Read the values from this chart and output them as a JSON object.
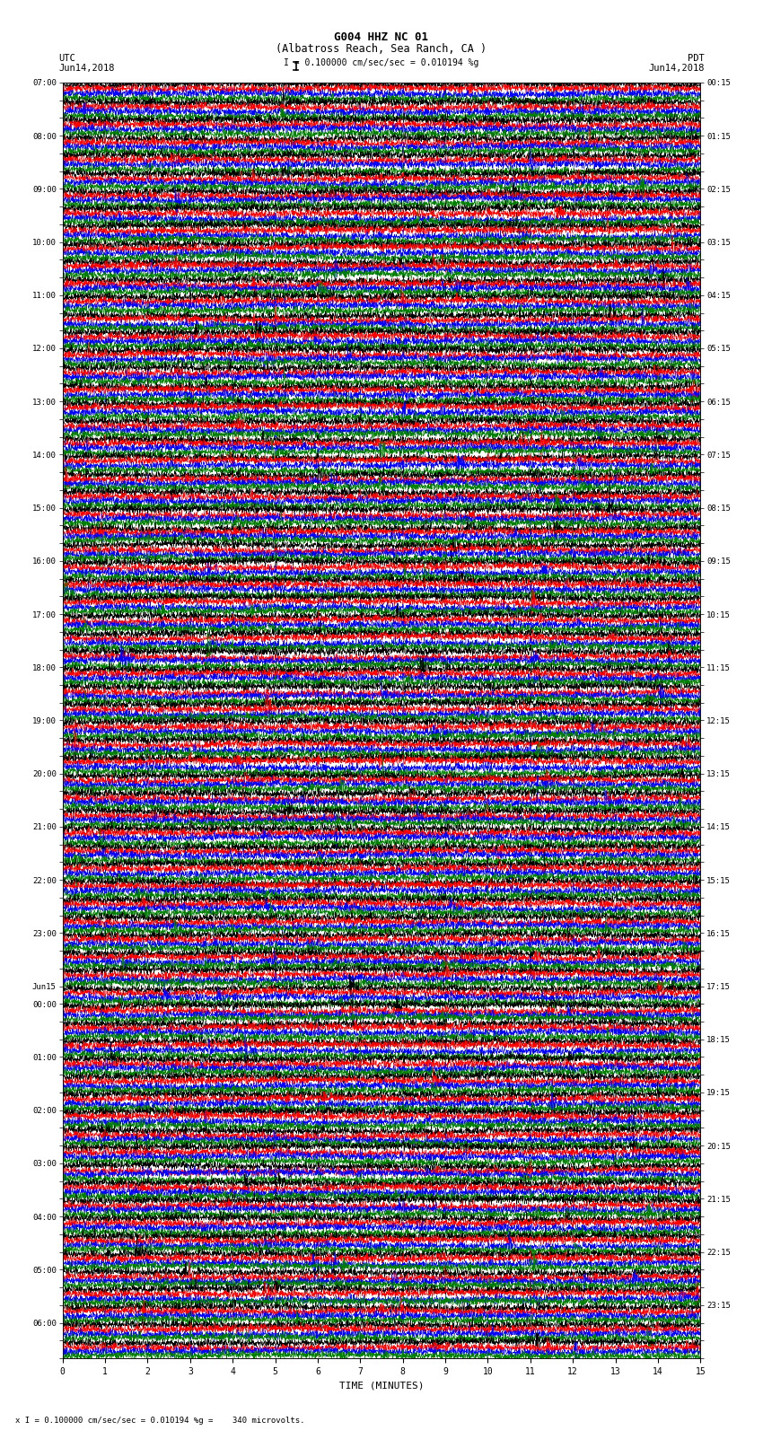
{
  "title_line1": "G004 HHZ NC 01",
  "title_line2": "(Albatross Reach, Sea Ranch, CA )",
  "scale_label": "I = 0.100000 cm/sec/sec = 0.010194 %g",
  "bottom_label": "x I = 0.100000 cm/sec/sec = 0.010194 %g =    340 microvolts.",
  "xlabel": "TIME (MINUTES)",
  "left_label_top": "UTC",
  "left_label_date": "Jun14,2018",
  "right_label_top": "PDT",
  "right_label_date": "Jun14,2018",
  "left_times_utc": [
    "07:00",
    "",
    "",
    "08:00",
    "",
    "",
    "09:00",
    "",
    "",
    "10:00",
    "",
    "",
    "11:00",
    "",
    "",
    "12:00",
    "",
    "",
    "13:00",
    "",
    "",
    "14:00",
    "",
    "",
    "15:00",
    "",
    "",
    "16:00",
    "",
    "",
    "17:00",
    "",
    "",
    "18:00",
    "",
    "",
    "19:00",
    "",
    "",
    "20:00",
    "",
    "",
    "21:00",
    "",
    "",
    "22:00",
    "",
    "",
    "23:00",
    "",
    "",
    "Jun15",
    "00:00",
    "",
    "",
    "01:00",
    "",
    "",
    "02:00",
    "",
    "",
    "03:00",
    "",
    "",
    "04:00",
    "",
    "",
    "05:00",
    "",
    "",
    "06:00",
    ""
  ],
  "right_times_pdt": [
    "00:15",
    "",
    "",
    "01:15",
    "",
    "",
    "02:15",
    "",
    "",
    "03:15",
    "",
    "",
    "04:15",
    "",
    "",
    "05:15",
    "",
    "",
    "06:15",
    "",
    "",
    "07:15",
    "",
    "",
    "08:15",
    "",
    "",
    "09:15",
    "",
    "",
    "10:15",
    "",
    "",
    "11:15",
    "",
    "",
    "12:15",
    "",
    "",
    "13:15",
    "",
    "",
    "14:15",
    "",
    "",
    "15:15",
    "",
    "",
    "16:15",
    "",
    "",
    "17:15",
    "",
    "",
    "18:15",
    "",
    "",
    "19:15",
    "",
    "",
    "20:15",
    "",
    "",
    "21:15",
    "",
    "",
    "22:15",
    "",
    "",
    "23:15",
    ""
  ],
  "num_rows": 72,
  "traces_per_row": 4,
  "trace_colors": [
    "black",
    "red",
    "blue",
    "green"
  ],
  "minutes": 15,
  "background_color": "white",
  "fig_width": 8.5,
  "fig_height": 16.13,
  "dpi": 100
}
